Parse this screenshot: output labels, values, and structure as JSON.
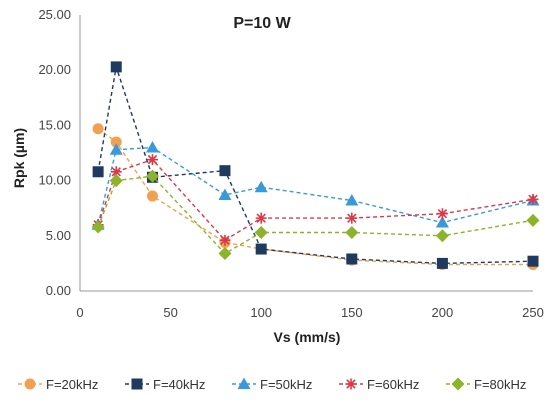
{
  "chart_data": {
    "type": "line",
    "title": "P=10 W",
    "xlabel": "Vs (mm/s)",
    "ylabel": "Rpk (µm)",
    "xlim": [
      0,
      250
    ],
    "ylim": [
      0,
      25
    ],
    "xticks": [
      0,
      50,
      100,
      150,
      200,
      250
    ],
    "xtick_labels": [
      "0",
      "50",
      "100",
      "150",
      "200",
      "250"
    ],
    "yticks": [
      0,
      5,
      10,
      15,
      20,
      25
    ],
    "ytick_labels": [
      "0.00",
      "5.00",
      "10.00",
      "15.00",
      "20.00",
      "25.00"
    ],
    "grid": false,
    "legend_position": "bottom",
    "x": [
      10,
      20,
      40,
      80,
      100,
      150,
      200,
      250
    ],
    "series": [
      {
        "name": "F=20kHz",
        "color": "#f0a050",
        "marker": "circle",
        "values": [
          14.7,
          13.5,
          8.6,
          4.4,
          3.8,
          2.8,
          2.4,
          2.4
        ]
      },
      {
        "name": "F=40kHz",
        "color": "#1f3a5f",
        "marker": "square",
        "values": [
          10.8,
          20.3,
          10.3,
          10.9,
          3.8,
          2.9,
          2.5,
          2.7
        ]
      },
      {
        "name": "F=50kHz",
        "color": "#3a9ad9",
        "marker": "triangle",
        "values": [
          6.0,
          12.8,
          13.0,
          8.7,
          9.4,
          8.2,
          6.2,
          8.2
        ]
      },
      {
        "name": "F=60kHz",
        "color": "#d93a4a",
        "marker": "star",
        "values": [
          6.0,
          10.8,
          11.9,
          4.6,
          6.6,
          6.6,
          7.0,
          8.3
        ]
      },
      {
        "name": "F=80kHz",
        "color": "#8db32a",
        "marker": "diamond",
        "values": [
          5.8,
          10.0,
          10.4,
          3.4,
          5.3,
          5.3,
          5.0,
          6.4
        ]
      }
    ]
  }
}
